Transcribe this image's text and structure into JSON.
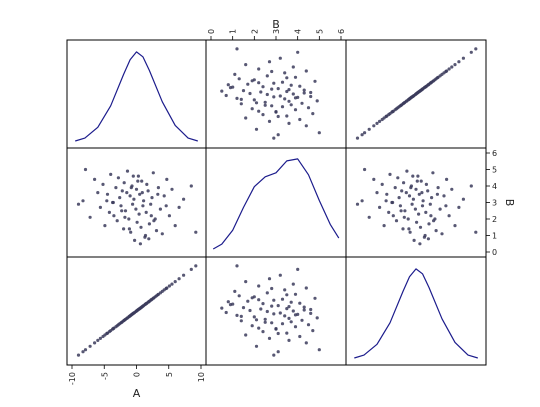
{
  "chart_data": {
    "type": "scatter",
    "variables": [
      "A",
      "B"
    ],
    "diagonal": "kde",
    "colors": {
      "points": "#3b3b5c",
      "kde": "#1c1c8c",
      "frame": "#000000"
    },
    "axis_labels": {
      "bottom_left": "A",
      "top_middle": "B",
      "right_middle": "B"
    },
    "ranges": {
      "A": [
        -10,
        10
      ],
      "B": [
        0,
        6
      ]
    },
    "ticks": {
      "A": {
        "values": [
          -10,
          -5,
          0,
          5,
          10
        ],
        "labels": [
          "-10",
          "-5",
          "0",
          "5",
          "10"
        ]
      },
      "B": {
        "values": [
          0,
          1,
          2,
          3,
          4,
          5,
          6
        ],
        "labels": [
          "0",
          "1",
          "2",
          "3",
          "4",
          "5",
          "6"
        ]
      }
    },
    "kde_A": {
      "x": [
        -9.5,
        -8,
        -6,
        -4,
        -2,
        -1,
        0,
        1,
        2,
        4,
        6,
        8,
        9.5
      ],
      "density": [
        0.02,
        0.05,
        0.16,
        0.38,
        0.7,
        0.85,
        0.93,
        0.88,
        0.74,
        0.42,
        0.18,
        0.05,
        0.02
      ]
    },
    "kde_B": {
      "x": [
        0.1,
        0.5,
        1.0,
        1.5,
        2.0,
        2.5,
        3.0,
        3.5,
        4.0,
        4.5,
        5.0,
        5.5,
        5.9
      ],
      "density": [
        0.03,
        0.08,
        0.22,
        0.45,
        0.66,
        0.76,
        0.8,
        0.92,
        0.94,
        0.78,
        0.52,
        0.28,
        0.14
      ]
    },
    "points": {
      "A": [
        -8.3,
        -7.9,
        -7.2,
        -6.5,
        -6.0,
        -5.6,
        -5.2,
        -4.9,
        -4.5,
        -4.2,
        -4.0,
        -3.7,
        -3.5,
        -3.2,
        -3.0,
        -2.8,
        -2.6,
        -2.4,
        -2.2,
        -2.0,
        -1.9,
        -1.7,
        -1.5,
        -1.4,
        -1.2,
        -1.0,
        -0.9,
        -0.7,
        -0.6,
        -0.4,
        -0.3,
        -0.1,
        0.0,
        0.1,
        0.3,
        0.4,
        0.5,
        0.7,
        0.8,
        1.0,
        1.1,
        1.3,
        1.5,
        1.6,
        1.8,
        2.0,
        2.2,
        2.4,
        2.6,
        2.9,
        3.1,
        3.4,
        3.7,
        4.0,
        4.3,
        4.7,
        5.1,
        5.5,
        6.0,
        6.6,
        7.3,
        8.5,
        -9.0,
        9.2,
        -1.8,
        0.9,
        2.7,
        -3.6,
        -0.5,
        1.9,
        -2.3,
        3.3,
        0.2,
        -1.1,
        4.6,
        -4.6,
        0.6,
        2.3,
        -0.8,
        1.4
      ],
      "B": [
        3.1,
        5.0,
        2.1,
        4.4,
        3.6,
        2.7,
        4.1,
        1.6,
        3.5,
        2.4,
        4.7,
        3.0,
        2.2,
        3.9,
        1.9,
        4.5,
        3.3,
        2.8,
        3.7,
        1.4,
        4.2,
        2.5,
        3.6,
        4.9,
        2.0,
        3.4,
        1.2,
        4.0,
        2.9,
        3.2,
        0.7,
        2.6,
        3.8,
        1.8,
        4.6,
        2.3,
        3.5,
        1.5,
        4.3,
        2.8,
        3.1,
        0.9,
        2.4,
        4.1,
        3.7,
        1.7,
        2.9,
        3.3,
        4.8,
        2.0,
        1.3,
        3.9,
        2.6,
        1.1,
        3.4,
        4.4,
        2.2,
        3.8,
        1.6,
        2.7,
        3.2,
        4.0,
        2.9,
        1.2,
        2.1,
        3.6,
        1.9,
        3.0,
        4.6,
        0.8,
        2.5,
        3.5,
        4.3,
        1.4,
        2.8,
        3.1,
        0.5,
        2.2,
        3.9,
        1.0
      ]
    }
  }
}
